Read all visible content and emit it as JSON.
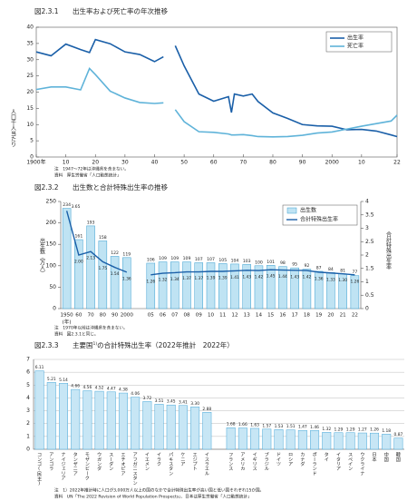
{
  "chart_data": [
    {
      "type": "line",
      "figure": "図2.3.1",
      "title": "出生率および死亡率の年次推移",
      "y_label": "人口千人当たり",
      "x": [
        1900,
        1905,
        1910,
        1915,
        1918,
        1920,
        1925,
        1930,
        1935,
        1940,
        1943,
        1945,
        1947,
        1950,
        1955,
        1960,
        1965,
        1966,
        1967,
        1970,
        1973,
        1975,
        1980,
        1985,
        1990,
        1995,
        2000,
        2005,
        2010,
        2015,
        2020,
        2022
      ],
      "series": [
        {
          "name": "出生率",
          "color": "#1a5fa8",
          "values": [
            32.4,
            31.2,
            34.8,
            33.1,
            32.2,
            36.2,
            34.9,
            32.4,
            31.6,
            29.4,
            30.9,
            null,
            34.3,
            28.1,
            19.4,
            17.2,
            18.6,
            13.7,
            19.4,
            18.8,
            19.4,
            17.1,
            13.6,
            11.9,
            10.0,
            9.6,
            9.5,
            8.4,
            8.5,
            8.0,
            6.8,
            6.3
          ]
        },
        {
          "name": "死亡率",
          "color": "#5fb3d9",
          "values": [
            20.8,
            21.6,
            21.6,
            20.7,
            27.3,
            25.4,
            20.3,
            18.2,
            16.8,
            16.5,
            16.7,
            null,
            14.6,
            10.9,
            7.8,
            7.6,
            7.1,
            6.8,
            6.8,
            6.9,
            6.6,
            6.3,
            6.2,
            6.3,
            6.7,
            7.4,
            7.7,
            8.6,
            9.5,
            10.3,
            11.1,
            12.9
          ]
        }
      ],
      "xlim": [
        1900,
        2022
      ],
      "xticks": [
        {
          "value": 1900,
          "label": "1900年"
        },
        {
          "value": 1910,
          "label": "10"
        },
        {
          "value": 1920,
          "label": "20"
        },
        {
          "value": 1930,
          "label": "30"
        },
        {
          "value": 1940,
          "label": "40"
        },
        {
          "value": 1950,
          "label": "50"
        },
        {
          "value": 1960,
          "label": "60"
        },
        {
          "value": 1970,
          "label": "70"
        },
        {
          "value": 1980,
          "label": "80"
        },
        {
          "value": 1990,
          "label": "90"
        },
        2000,
        {
          "value": 2010,
          "label": "10"
        },
        {
          "value": 2022,
          "label": "22"
        }
      ],
      "ylim": [
        0,
        40
      ],
      "yticks": [
        0,
        5,
        10,
        15,
        20,
        25,
        30,
        35,
        40
      ],
      "legend": "top-right",
      "notes": [
        "注　1947～72年は沖縄県を含まない。",
        "資料　厚生労働省「人口動態統計」"
      ]
    },
    {
      "type": "bar",
      "figure": "図2.3.2",
      "title": "出生数と合計特殊出生率の推移",
      "y_label": "出生数（万人）",
      "y2_label": "合計特殊出生率",
      "x_unit": "(年)",
      "categories": [
        "1950",
        "60",
        "70",
        "80",
        "90",
        "2000",
        null,
        "05",
        "06",
        "07",
        "08",
        "09",
        "10",
        "11",
        "12",
        "13",
        "14",
        "15",
        "16",
        "17",
        "18",
        "19",
        "20",
        "21",
        "22"
      ],
      "series": [
        {
          "name": "出生数",
          "type": "bar",
          "color": "#bfe3f3",
          "values": [
            234,
            161,
            193,
            158,
            122,
            119,
            null,
            106,
            109,
            109,
            109,
            107,
            107,
            105,
            104,
            103,
            100,
            101,
            98,
            95,
            92,
            87,
            84,
            81,
            77
          ]
        },
        {
          "name": "合計特殊出生率",
          "type": "line",
          "axis": "y2",
          "color": "#1a5fa8",
          "values": [
            3.65,
            2.0,
            2.13,
            1.75,
            1.54,
            1.36,
            null,
            1.26,
            1.32,
            1.34,
            1.37,
            1.37,
            1.39,
            1.39,
            1.41,
            1.43,
            1.42,
            1.45,
            1.44,
            1.43,
            1.42,
            1.36,
            1.33,
            1.3,
            1.26
          ],
          "value_labels": [
            "3.65",
            "2.00",
            "2.13",
            "1.75",
            "1.54",
            "1.36",
            null,
            "1.26",
            "1.32",
            "1.34",
            "1.37",
            "1.37",
            "1.39",
            "1.39",
            "1.41",
            "1.43",
            "1.42",
            "1.45",
            "1.44",
            "1.43",
            "1.42",
            "1.36",
            "1.33",
            "1.30",
            "1.26"
          ]
        }
      ],
      "ylim": [
        0,
        250
      ],
      "yticks": [
        0,
        50,
        100,
        150,
        200,
        250
      ],
      "y2lim": [
        0,
        4
      ],
      "y2ticks": [
        0,
        0.5,
        1,
        1.5,
        2,
        2.5,
        3,
        3.5,
        4
      ],
      "legend": "top-right",
      "notes": [
        "注　1970年以前は沖縄県を含まない。",
        "資料　図2.3.1と同じ。"
      ]
    },
    {
      "type": "bar",
      "figure": "図2.3.3",
      "title": [
        "主要国",
        "1)",
        "の合計特殊出生率（2022年推計　2022年）"
      ],
      "color": "#c7e6f5",
      "categories": [
        "コンゴ(民主)",
        "アンゴラ",
        "ナイジェリア",
        "タンザニア",
        "モザンビーク",
        "ウガンダ",
        "スーダン",
        "エチオピア",
        "アフガニスタン",
        "イエメン",
        "イラク",
        "パキスタン",
        "ケニア",
        "エジプト",
        "イスラエル",
        null,
        "フランス",
        "アメリカ",
        "イギリス",
        "ブラジル",
        "ドイツ",
        "ロシア",
        "カナダ",
        "ポーランド",
        "タイ",
        "イタリア",
        "スペイン",
        "ウクライナ",
        "日本",
        "中国",
        "韓国"
      ],
      "values": [
        6.11,
        5.21,
        5.14,
        4.66,
        4.56,
        4.52,
        4.47,
        4.38,
        4.06,
        3.72,
        3.51,
        3.45,
        3.41,
        3.3,
        2.88,
        null,
        1.68,
        1.66,
        1.63,
        1.57,
        1.53,
        1.51,
        1.47,
        1.46,
        1.32,
        1.29,
        1.29,
        1.27,
        1.26,
        1.18,
        0.87
      ],
      "value_labels": [
        "6.11",
        "5.21",
        "5.14",
        "4.66",
        "4.56",
        "4.52",
        "4.47",
        "4.38",
        "4.06",
        "3.72",
        "3.51",
        "3.45",
        "3.41",
        "3.30",
        "2.88",
        null,
        "1.68",
        "1.66",
        "1.63",
        "1.57",
        "1.53",
        "1.51",
        "1.47",
        "1.46",
        "1.32",
        "1.29",
        "1.29",
        "1.27",
        "1.26",
        "1.18",
        "0.87"
      ],
      "ylim": [
        0,
        7
      ],
      "yticks": [
        0,
        1,
        2,
        3,
        4,
        5,
        6,
        7
      ],
      "grid": true,
      "notes": [
        "注　1）2022年推計時に人口が3,000万人以上の国のなかで合計特殊出生率が高い国と低い国それぞれ15か国。",
        "資料　UN「The 2022 Revision of World Population Prospects」、日本は厚生労働省「人口動態統計」"
      ]
    }
  ]
}
